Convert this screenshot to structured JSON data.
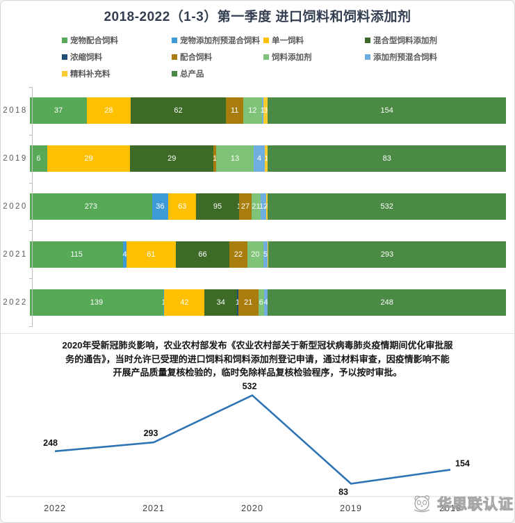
{
  "title": "2018-2022（1-3）第一季度 进口饲料和饲料添加剂",
  "legend": {
    "items": [
      {
        "label": "宠物配合饲料",
        "color": "#57A857"
      },
      {
        "label": "宠物添加剂预混合饲料",
        "color": "#3D9BD8"
      },
      {
        "label": "单一饲料",
        "color": "#FEC001"
      },
      {
        "label": "混合型饲料添加剂",
        "color": "#3D6B27"
      },
      {
        "label": "浓缩饲料",
        "color": "#1F4E79"
      },
      {
        "label": "配合饲料",
        "color": "#A97D0D"
      },
      {
        "label": "饲料添加剂",
        "color": "#7EC378"
      },
      {
        "label": "添加剂预混合饲料",
        "color": "#6FAEDE"
      },
      {
        "label": "精料补充料",
        "color": "#FCCB2D"
      },
      {
        "label": "总产品",
        "color": "#4A8A44"
      }
    ]
  },
  "chart_data": [
    {
      "type": "bar",
      "variant": "horizontal-stacked-normalized",
      "title": "2018-2022（1-3）第一季度 进口饲料和饲料添加剂",
      "categories": [
        "2018",
        "2019",
        "2020",
        "2021",
        "2022"
      ],
      "legend_position": "top",
      "grid": false,
      "series": [
        {
          "name": "宠物配合饲料",
          "color": "#57A857",
          "values": [
            37,
            6,
            273,
            115,
            139
          ],
          "labels": [
            "37",
            "6",
            "273",
            "115",
            "139"
          ]
        },
        {
          "name": "宠物添加剂预混合饲料",
          "color": "#3D9BD8",
          "values": [
            0,
            0,
            36,
            4,
            1
          ],
          "labels": [
            "",
            "",
            "36",
            "4",
            "1"
          ]
        },
        {
          "name": "单一饲料",
          "color": "#FEC001",
          "values": [
            28,
            29,
            63,
            61,
            42
          ],
          "labels": [
            "28",
            "29",
            "63",
            "61",
            "42"
          ]
        },
        {
          "name": "混合型饲料添加剂",
          "color": "#3D6B27",
          "values": [
            62,
            29,
            95,
            66,
            34
          ],
          "labels": [
            "62",
            "29",
            "95",
            "66",
            "34"
          ]
        },
        {
          "name": "浓缩饲料",
          "color": "#1F4E79",
          "values": [
            0,
            0,
            1,
            0,
            1
          ],
          "labels": [
            "",
            "",
            "1",
            "",
            "1"
          ]
        },
        {
          "name": "配合饲料",
          "color": "#A97D0D",
          "values": [
            11,
            1,
            27,
            22,
            21
          ],
          "labels": [
            "11",
            "1",
            "27",
            "22",
            "21"
          ]
        },
        {
          "name": "饲料添加剂",
          "color": "#7EC378",
          "values": [
            12,
            13,
            21,
            20,
            6
          ],
          "labels": [
            "12",
            "13",
            "21",
            "20",
            "6"
          ]
        },
        {
          "name": "添加剂预混合饲料",
          "color": "#6FAEDE",
          "values": [
            1,
            4,
            12,
            5,
            4
          ],
          "labels": [
            "1",
            "4",
            "12",
            "5",
            "4"
          ]
        },
        {
          "name": "精料补充料",
          "color": "#FCCB2D",
          "values": [
            3,
            1,
            4,
            1,
            0
          ],
          "labels": [
            "3",
            "1",
            "4",
            "",
            ""
          ]
        },
        {
          "name": "总产品",
          "color": "#4A8A44",
          "values": [
            154,
            83,
            532,
            293,
            248
          ],
          "labels": [
            "154",
            "83",
            "532",
            "293",
            "248"
          ]
        }
      ]
    },
    {
      "type": "line",
      "categories": [
        "2022",
        "2021",
        "2020",
        "2019",
        "2018"
      ],
      "series": [
        {
          "name": "总产品",
          "color": "#2E74B5",
          "values": [
            248,
            293,
            532,
            83,
            154
          ]
        }
      ],
      "data_labels": [
        "248",
        "293",
        "532",
        "83",
        "154"
      ],
      "grid": false,
      "legend_position": "none"
    }
  ],
  "annotation": {
    "lines": [
      "2020年受新冠肺炎影响，农业农村部发布《农业农村部关于新型冠状病毒肺炎疫情期间优化审批服",
      "务的通告》，当时允许已受理的进口饲料和饲料添加剂登记申请，通过材料审查，因疫情影响不能",
      "开展产品质量复核检验的，临时免除样品复核检验程序，予以按时审批。"
    ]
  },
  "watermark": {
    "text": "华思联认证",
    "icon": "panda-logo-icon"
  }
}
